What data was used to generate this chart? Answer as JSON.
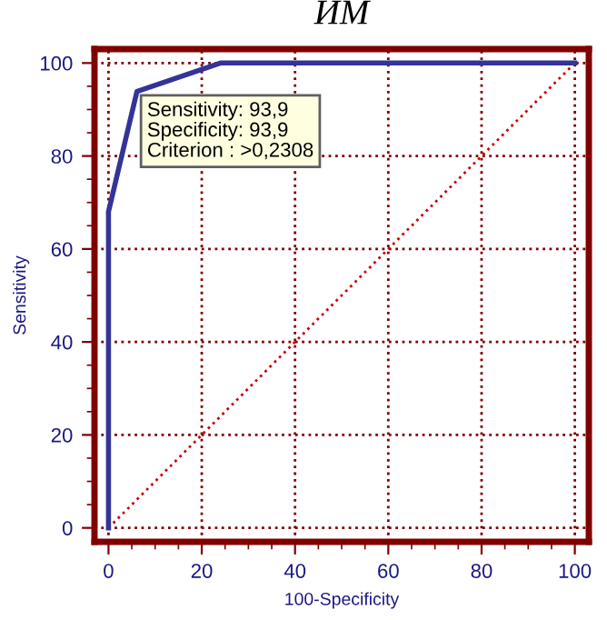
{
  "chart_data": {
    "type": "line",
    "title": "ИМ",
    "xlabel": "100-Specificity",
    "ylabel": "Sensitivity",
    "xlim": [
      -3,
      103
    ],
    "ylim": [
      -3,
      103
    ],
    "xticks": [
      0,
      20,
      40,
      60,
      80,
      100
    ],
    "yticks": [
      0,
      20,
      40,
      60,
      80,
      100
    ],
    "grid": true,
    "marker": "none",
    "series": [
      {
        "color": "#333399",
        "line_style": "solid",
        "x": [
          0,
          0,
          6.1,
          24,
          100
        ],
        "values": [
          0,
          68,
          93.9,
          100,
          100
        ]
      },
      {
        "color": "#cc0000",
        "line_style": "dotted",
        "x": [
          0,
          100
        ],
        "values": [
          0,
          100
        ]
      }
    ],
    "annotations": [
      {
        "text": "Sensitivity: 93,9\nSpecificity: 93,9\nCriterion : >0,2308",
        "x": 6.1,
        "y": 93.9
      }
    ]
  }
}
